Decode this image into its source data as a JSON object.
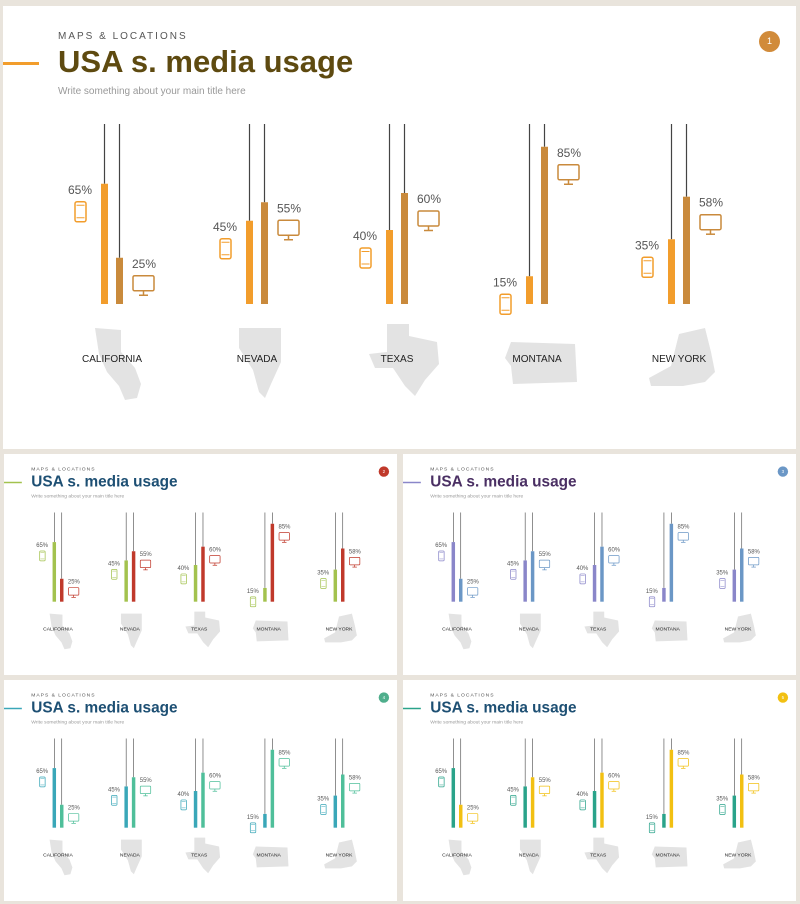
{
  "slides": [
    {
      "id": "s1",
      "kicker": "MAPS & LOCATIONS",
      "title": "USA s. media usage",
      "subtitle": "Write something about your main title here",
      "badge": "1",
      "colors": {
        "title": "#5e4a10",
        "accent": "#f29d2c",
        "mobile": "#f29d2c",
        "desktop": "#c98a3c",
        "badge": "#d18b3a"
      }
    },
    {
      "id": "s2",
      "kicker": "MAPS & LOCATIONS",
      "title": "USA s. media usage",
      "subtitle": "Write something about your main title here",
      "badge": "2",
      "colors": {
        "title": "#1d4f73",
        "accent": "#a3c24e",
        "mobile": "#a3c24e",
        "desktop": "#c0392b",
        "badge": "#c0392b"
      }
    },
    {
      "id": "s3",
      "kicker": "MAPS & LOCATIONS",
      "title": "USA s. media usage",
      "subtitle": "Write something about your main title here",
      "badge": "3",
      "colors": {
        "title": "#4a2f63",
        "accent": "#8a86c9",
        "mobile": "#8a86c9",
        "desktop": "#6b97c6",
        "badge": "#6b97c6"
      }
    },
    {
      "id": "s4",
      "kicker": "MAPS & LOCATIONS",
      "title": "USA s. media usage",
      "subtitle": "Write something about your main title here",
      "badge": "4",
      "colors": {
        "title": "#1d4f73",
        "accent": "#3aa7b8",
        "mobile": "#3aa7b8",
        "desktop": "#4fbf9a",
        "badge": "#4fae8c"
      }
    },
    {
      "id": "s5",
      "kicker": "MAPS & LOCATIONS",
      "title": "USA s. media usage",
      "subtitle": "Write something about your main title here",
      "badge": "5",
      "colors": {
        "title": "#1d4f73",
        "accent": "#2aa38a",
        "mobile": "#2aa38a",
        "desktop": "#f2c012",
        "badge": "#f2c012"
      }
    }
  ],
  "chart_data": {
    "type": "bar",
    "categories": [
      "CALIFORNIA",
      "NEVADA",
      "TEXAS",
      "MONTANA",
      "NEW YORK"
    ],
    "series": [
      {
        "icon": "smartphone-icon",
        "values": [
          65,
          45,
          40,
          15,
          35
        ]
      },
      {
        "icon": "desktop-icon",
        "values": [
          25,
          55,
          60,
          85,
          58
        ]
      }
    ],
    "ylim": [
      0,
      100
    ]
  }
}
